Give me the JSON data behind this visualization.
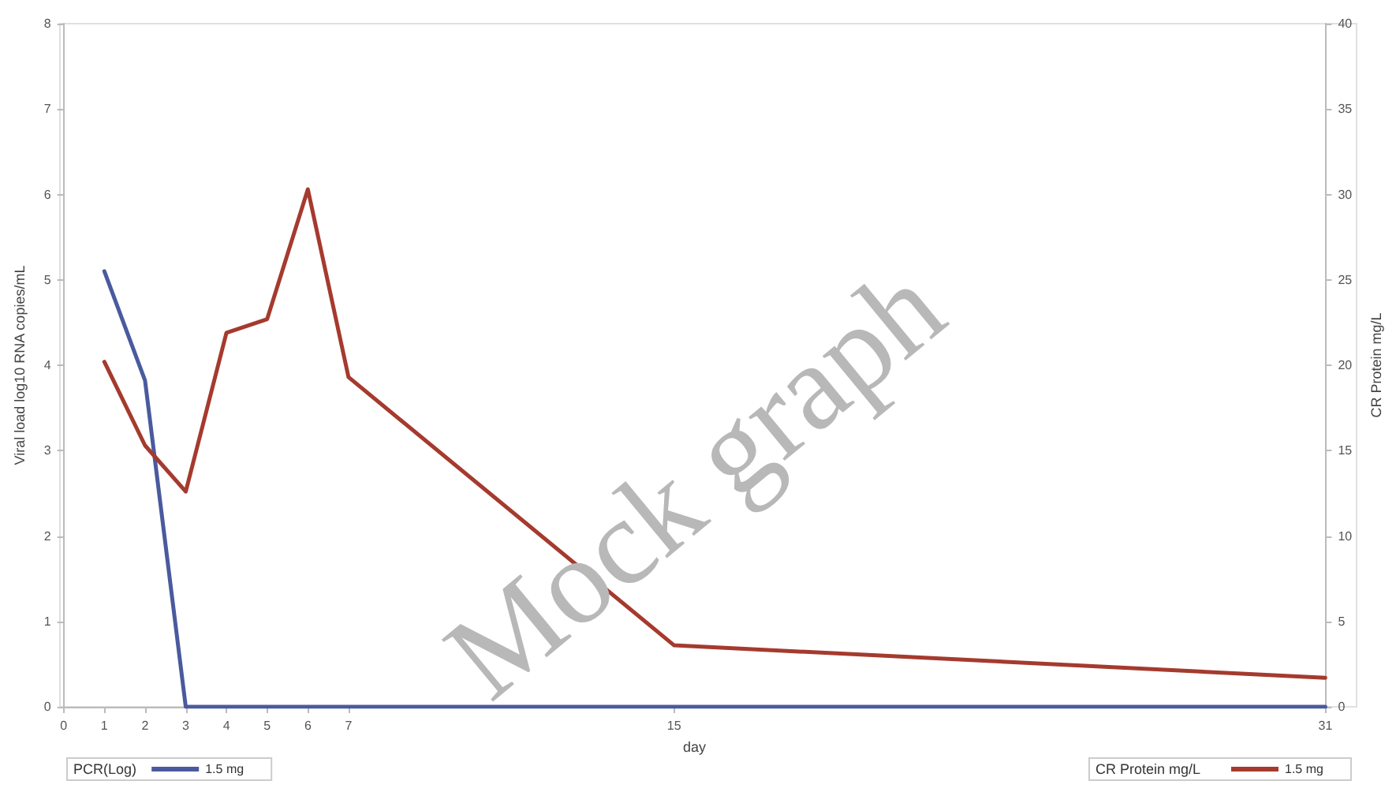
{
  "chart_data": {
    "type": "line",
    "xlabel": "day",
    "ylabel": "Viral load log10 RNA copies/mL",
    "y2label": "CR Protein mg/L",
    "legend_title": [
      "PCR(Log)",
      "CR Protein mg/L"
    ],
    "x": [
      1,
      2,
      3,
      4,
      5,
      6,
      7,
      15,
      31
    ],
    "series": [
      {
        "name": "1.5 mg",
        "color": "#4a5a9e",
        "values": [
          5.1,
          3.82,
          0,
          0,
          0,
          0,
          0,
          0,
          0
        ]
      },
      {
        "name": "1.5 mg",
        "color": "#a53a2e",
        "axis": "y2",
        "values": [
          20.2,
          15.3,
          12.6,
          21.9,
          22.7,
          30.3,
          19.3,
          3.6,
          1.7
        ]
      }
    ],
    "xlim": [
      0,
      31
    ],
    "xticks": [
      0,
      1,
      2,
      3,
      4,
      5,
      6,
      7,
      15,
      31
    ],
    "ylim": [
      0,
      8
    ],
    "yticks": [
      0,
      1,
      2,
      3,
      4,
      5,
      6,
      7,
      8
    ],
    "y2lim": [
      0,
      40
    ],
    "y2ticks": [
      0,
      5,
      10,
      15,
      20,
      25,
      30,
      35,
      40
    ],
    "grid": false,
    "legend": "bottom",
    "marker": "none",
    "line_style": "solid",
    "annotations": [
      "Mock graph"
    ]
  }
}
